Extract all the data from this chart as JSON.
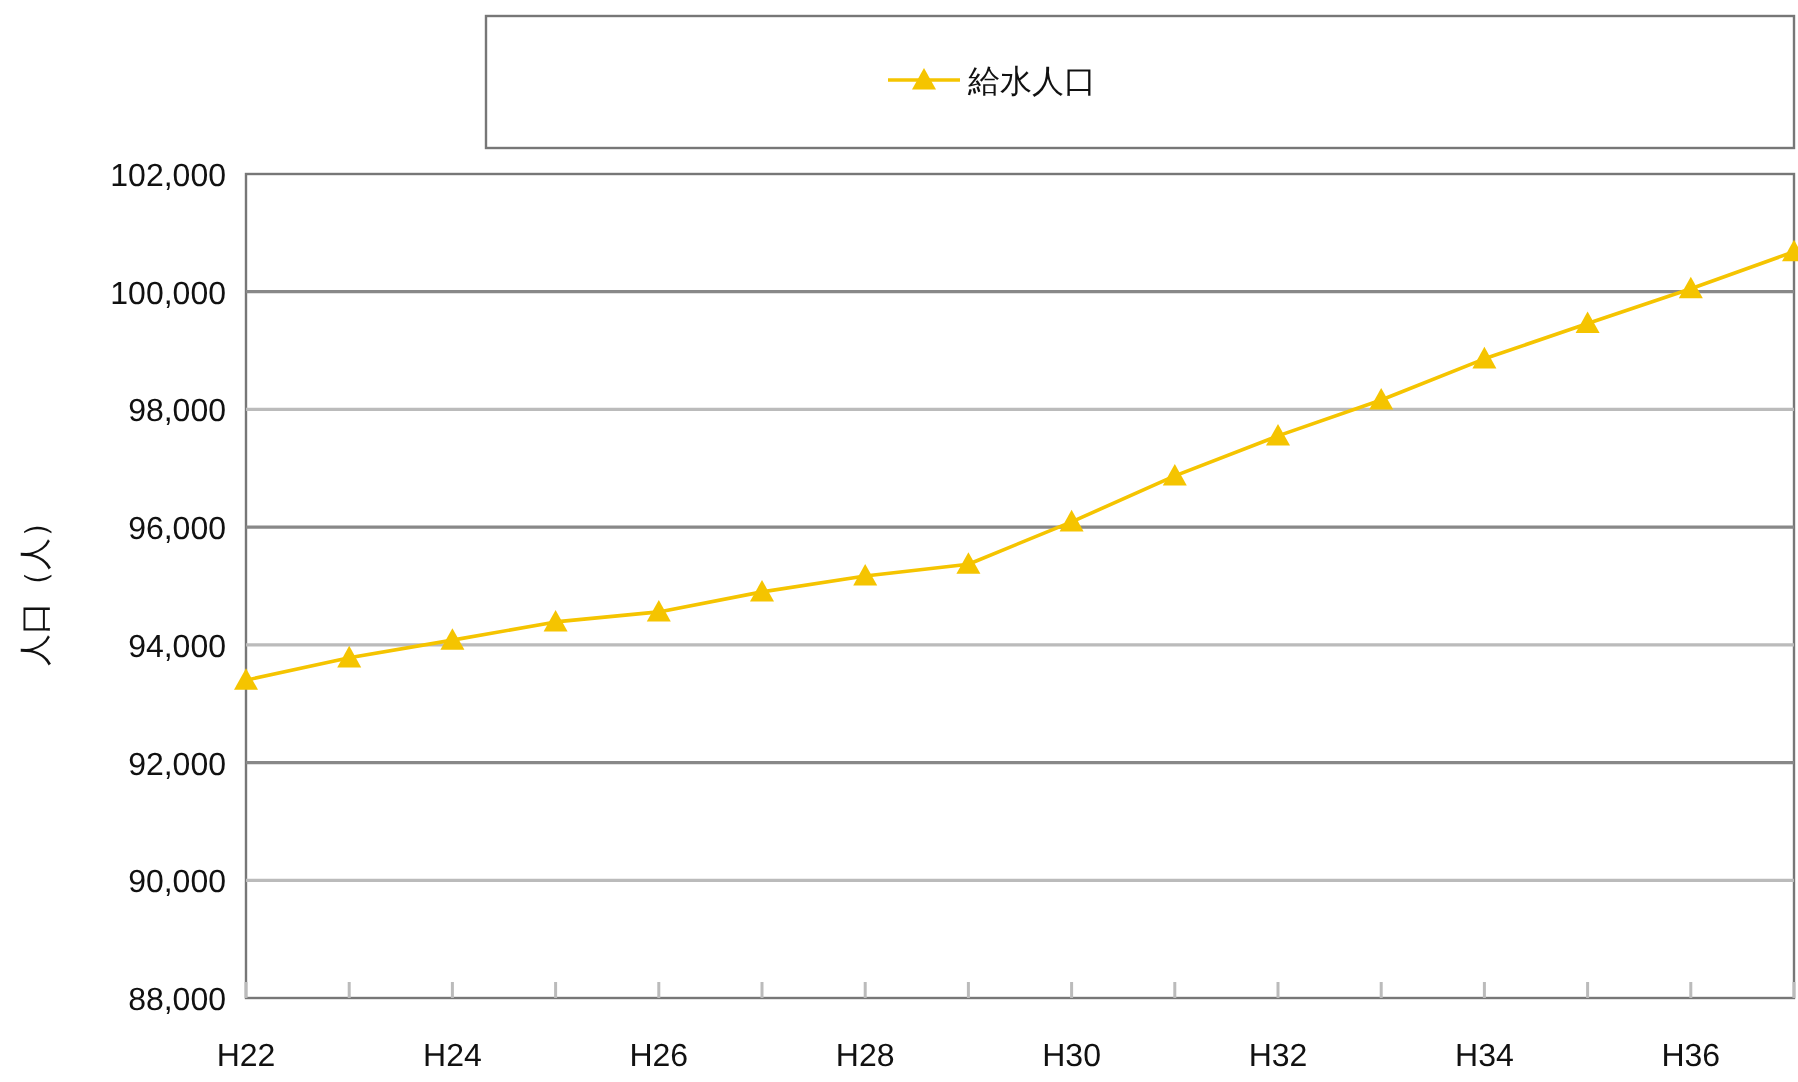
{
  "chart_data": {
    "type": "line",
    "ylabel": "人口（人）",
    "categories": [
      "H22",
      null,
      "H24",
      null,
      "H26",
      null,
      "H28",
      null,
      "H30",
      null,
      "H32",
      null,
      "H34",
      null,
      "H36",
      null
    ],
    "series": [
      {
        "name": "給水人口",
        "color": "#f5c400",
        "values": [
          93400,
          93780,
          94080,
          94390,
          94560,
          94900,
          95170,
          95370,
          96090,
          96870,
          97550,
          98160,
          98860,
          99460,
          100050,
          100680
        ]
      }
    ],
    "ylim": [
      88000,
      102000
    ],
    "yticks": [
      {
        "value": 88000,
        "label": "88,000"
      },
      {
        "value": 90000,
        "label": "90,000"
      },
      {
        "value": 92000,
        "label": "92,000"
      },
      {
        "value": 94000,
        "label": "94,000"
      },
      {
        "value": 96000,
        "label": "96,000"
      },
      {
        "value": 98000,
        "label": "98,000"
      },
      {
        "value": 100000,
        "label": "100,000"
      },
      {
        "value": 102000,
        "label": "102,000"
      }
    ],
    "grid": "y",
    "legend": "top",
    "marker": "triangle",
    "line_style": "solid"
  }
}
